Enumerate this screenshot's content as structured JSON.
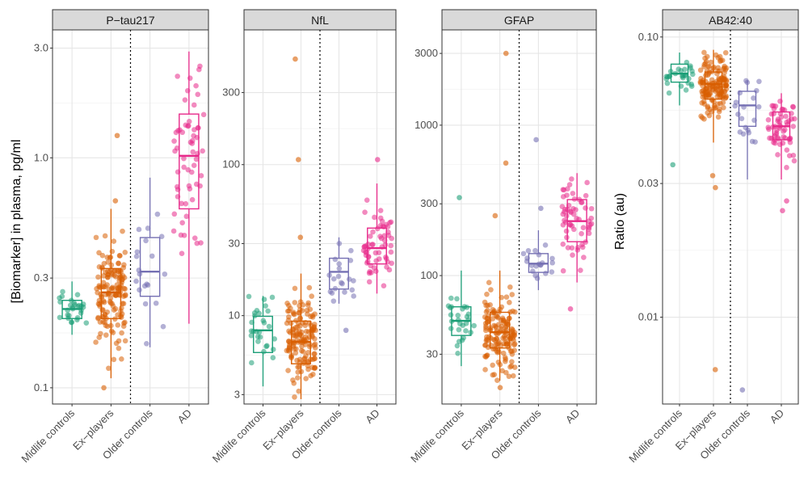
{
  "figure": {
    "ylabel_left": "[Biomarker] in plasma, pg/ml",
    "ylabel_right": "Ratio (au)"
  },
  "chart_data": [
    {
      "type": "box",
      "title": "P−tau217",
      "scale": "log10",
      "ylim": [
        0.085,
        3.6
      ],
      "yticks": [
        0.1,
        0.3,
        1.0,
        3.0
      ],
      "ytick_labels": [
        "0.1",
        "0.3",
        "1.0",
        "3.0"
      ],
      "categories": [
        "Midlife controls",
        "Ex−players",
        "Older controls",
        "AD"
      ],
      "divider_after": "Ex−players",
      "boxes": [
        {
          "group": "Midlife controls",
          "q1": 0.2,
          "median": 0.22,
          "q3": 0.24,
          "lower": 0.17,
          "upper": 0.29,
          "color": "#1b9e77",
          "n": 28,
          "outliers": []
        },
        {
          "group": "Ex−players",
          "q1": 0.2,
          "median": 0.26,
          "q3": 0.33,
          "lower": 0.11,
          "upper": 0.6,
          "color": "#d95f02",
          "n": 150,
          "outliers": [
            1.25,
            0.65,
            0.1
          ]
        },
        {
          "group": "Older controls",
          "q1": 0.25,
          "median": 0.32,
          "q3": 0.45,
          "lower": 0.15,
          "upper": 0.82,
          "color": "#7570b3",
          "n": 20,
          "outliers": []
        },
        {
          "group": "AD",
          "q1": 0.6,
          "median": 1.02,
          "q3": 1.55,
          "lower": 0.19,
          "upper": 2.9,
          "color": "#e7298a",
          "n": 60,
          "outliers": []
        }
      ]
    },
    {
      "type": "box",
      "title": "NfL",
      "scale": "log10",
      "ylim": [
        2.6,
        780
      ],
      "yticks": [
        3,
        10,
        30,
        100,
        300
      ],
      "ytick_labels": [
        "3",
        "10",
        "30",
        "100",
        "300"
      ],
      "categories": [
        "Midlife controls",
        "Ex−players",
        "Older controls",
        "AD"
      ],
      "divider_after": "Ex−players",
      "boxes": [
        {
          "group": "Midlife controls",
          "q1": 5.7,
          "median": 8.0,
          "q3": 9.9,
          "lower": 3.4,
          "upper": 13.5,
          "color": "#1b9e77",
          "n": 28,
          "outliers": []
        },
        {
          "group": "Ex−players",
          "q1": 4.8,
          "median": 6.7,
          "q3": 9.2,
          "lower": 2.8,
          "upper": 19,
          "color": "#d95f02",
          "n": 150,
          "outliers": [
            500,
            108,
            33
          ]
        },
        {
          "group": "Older controls",
          "q1": 15,
          "median": 19.5,
          "q3": 24,
          "lower": 12,
          "upper": 33,
          "color": "#7570b3",
          "n": 20,
          "outliers": [
            8
          ]
        },
        {
          "group": "AD",
          "q1": 22,
          "median": 28,
          "q3": 38,
          "lower": 14,
          "upper": 75,
          "color": "#e7298a",
          "n": 60,
          "outliers": [
            108
          ]
        }
      ]
    },
    {
      "type": "box",
      "title": "GFAP",
      "scale": "log10",
      "ylim": [
        14,
        4300
      ],
      "yticks": [
        30,
        100,
        300,
        1000,
        3000
      ],
      "ytick_labels": [
        "30",
        "100",
        "300",
        "1000",
        "3000"
      ],
      "categories": [
        "Midlife controls",
        "Ex−players",
        "Older controls",
        "AD"
      ],
      "divider_after": "Ex−players",
      "boxes": [
        {
          "group": "Midlife controls",
          "q1": 40,
          "median": 50,
          "q3": 62,
          "lower": 25,
          "upper": 108,
          "color": "#1b9e77",
          "n": 28,
          "outliers": [
            330
          ]
        },
        {
          "group": "Ex−players",
          "q1": 33,
          "median": 42,
          "q3": 57,
          "lower": 20,
          "upper": 108,
          "color": "#d95f02",
          "n": 150,
          "outliers": [
            3000,
            560,
            250,
            18
          ]
        },
        {
          "group": "Older controls",
          "q1": 105,
          "median": 120,
          "q3": 140,
          "lower": 80,
          "upper": 200,
          "color": "#7570b3",
          "n": 20,
          "outliers": [
            800,
            280
          ]
        },
        {
          "group": "AD",
          "q1": 168,
          "median": 230,
          "q3": 320,
          "lower": 90,
          "upper": 480,
          "color": "#e7298a",
          "n": 60,
          "outliers": [
            60
          ]
        }
      ]
    },
    {
      "type": "box",
      "title": "AB42:40",
      "scale": "log10",
      "ylim": [
        0.0049,
        0.106
      ],
      "yticks": [
        0.01,
        0.03,
        0.1
      ],
      "ytick_labels": [
        "0.01",
        "0.03",
        "0.10"
      ],
      "categories": [
        "Midlife controls",
        "Ex−players",
        "Older controls",
        "AD"
      ],
      "divider_after": "Ex−players",
      "boxes": [
        {
          "group": "Midlife controls",
          "q1": 0.069,
          "median": 0.074,
          "q3": 0.08,
          "lower": 0.057,
          "upper": 0.088,
          "color": "#1b9e77",
          "n": 28,
          "outliers": [
            0.035
          ]
        },
        {
          "group": "Ex−players",
          "q1": 0.06,
          "median": 0.068,
          "q3": 0.075,
          "lower": 0.042,
          "upper": 0.09,
          "color": "#d95f02",
          "n": 150,
          "outliers": [
            0.032,
            0.029,
            0.0065
          ]
        },
        {
          "group": "Older controls",
          "q1": 0.048,
          "median": 0.057,
          "q3": 0.064,
          "lower": 0.031,
          "upper": 0.07,
          "color": "#7570b3",
          "n": 20,
          "outliers": [
            0.0055
          ]
        },
        {
          "group": "AD",
          "q1": 0.043,
          "median": 0.048,
          "q3": 0.054,
          "lower": 0.031,
          "upper": 0.063,
          "color": "#e7298a",
          "n": 60,
          "outliers": [
            0.026,
            0.024
          ]
        }
      ]
    }
  ]
}
